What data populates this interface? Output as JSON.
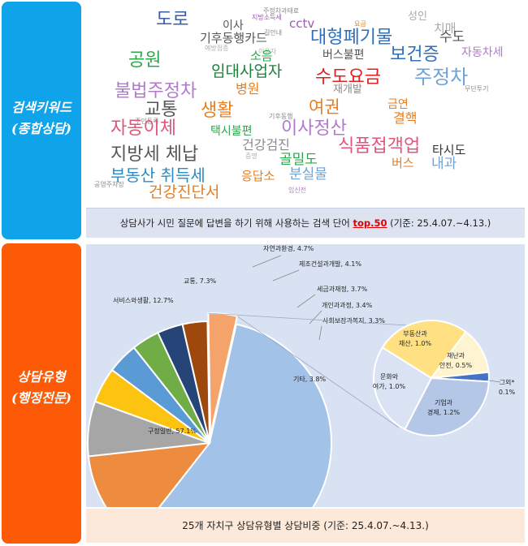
{
  "sections": {
    "keywords": {
      "label_line1": "검색키워드",
      "label_line2": "(종합상담)"
    },
    "types": {
      "label_line1": "상담유형",
      "label_line2": "(행정전문)"
    }
  },
  "colors": {
    "keyword_panel": "#0fa3ea",
    "type_panel": "#fd5a08",
    "caption_top_bg": "#dde3f1",
    "caption_bottom_bg": "#fde9d9",
    "highlight": "#e00000"
  },
  "wordcloud": {
    "caption_pre": "상담사가 시민 질문에 답변을 하기 위해 사용하는 검색 단어 ",
    "caption_highlight": "top.50",
    "caption_post": " (기준: 25.4.07.~4.13.)",
    "words": [
      {
        "text": "도로",
        "color": "#3a5ea8"
      },
      {
        "text": "이사",
        "color": "#555555"
      },
      {
        "text": "주정차과태료",
        "color": "#8a8a8a"
      },
      {
        "text": "지방소득세",
        "color": "#9b59b6"
      },
      {
        "text": "cctv",
        "color": "#9b59b6"
      },
      {
        "text": "요금",
        "color": "#e67e22"
      },
      {
        "text": "성인",
        "color": "#aaaaaa"
      },
      {
        "text": "치매",
        "color": "#aaaaaa"
      },
      {
        "text": "길안내",
        "color": "#8a8a8a"
      },
      {
        "text": "기후동행카드",
        "color": "#555555"
      },
      {
        "text": "대형폐기물",
        "color": "#2e6fc0"
      },
      {
        "text": "수도",
        "color": "#555555"
      },
      {
        "text": "예방접종",
        "color": "#b0b0b0"
      },
      {
        "text": "이용자",
        "color": "#b0b0b0"
      },
      {
        "text": "소음",
        "color": "#2aa84a"
      },
      {
        "text": "버스불편",
        "color": "#555555"
      },
      {
        "text": "보건증",
        "color": "#2e6fc0"
      },
      {
        "text": "자동차세",
        "color": "#b07acc"
      },
      {
        "text": "공원",
        "color": "#2aa84a"
      },
      {
        "text": "임대사업자",
        "color": "#207f3a"
      },
      {
        "text": "수도요금",
        "color": "#e02020"
      },
      {
        "text": "주정차",
        "color": "#6fa3d6"
      },
      {
        "text": "재개발",
        "color": "#8a8a8a"
      },
      {
        "text": "무단투기",
        "color": "#8a8a8a"
      },
      {
        "text": "불법주정차",
        "color": "#b07acc"
      },
      {
        "text": "병원",
        "color": "#e67e22"
      },
      {
        "text": "금연",
        "color": "#e67e22"
      },
      {
        "text": "교통",
        "color": "#555555"
      },
      {
        "text": "생활",
        "color": "#e67e22"
      },
      {
        "text": "기후동행",
        "color": "#8a8a8a"
      },
      {
        "text": "여권",
        "color": "#e67e22"
      },
      {
        "text": "결핵",
        "color": "#e67e22"
      },
      {
        "text": "주민등록",
        "color": "#8a8a8a"
      },
      {
        "text": "자동이체",
        "color": "#e0557a"
      },
      {
        "text": "택시불편",
        "color": "#2aa84a"
      },
      {
        "text": "이사정산",
        "color": "#b07acc"
      },
      {
        "text": "건강검진",
        "color": "#8a8a8a"
      },
      {
        "text": "식품접객업",
        "color": "#e0557a"
      },
      {
        "text": "타시도",
        "color": "#333333"
      },
      {
        "text": "지방세 체납",
        "color": "#555555"
      },
      {
        "text": "골밀도",
        "color": "#2aa84a"
      },
      {
        "text": "증명",
        "color": "#b0b0b0"
      },
      {
        "text": "버스",
        "color": "#e67e22"
      },
      {
        "text": "내과",
        "color": "#6fa3d6"
      },
      {
        "text": "부동산 취득세",
        "color": "#2e8bc0"
      },
      {
        "text": "응답소",
        "color": "#e67e22"
      },
      {
        "text": "분실물",
        "color": "#6fa3d6"
      },
      {
        "text": "공영주차장",
        "color": "#8a8a8a"
      },
      {
        "text": "건강진단서",
        "color": "#e67e22"
      },
      {
        "text": "임신전",
        "color": "#b07acc"
      }
    ]
  },
  "chart_data": [
    {
      "type": "pie",
      "slices": [
        {
          "label": "구정일반",
          "value": 57.1,
          "color": "#a3c2e7"
        },
        {
          "label": "서비스와생활",
          "value": 12.7,
          "color": "#ed8c3e"
        },
        {
          "label": "교통",
          "value": 7.3,
          "color": "#a6a6a6"
        },
        {
          "label": "자연과환경",
          "value": 4.7,
          "color": "#fcc410"
        },
        {
          "label": "제조건설과개발",
          "value": 4.1,
          "color": "#5b9bd5"
        },
        {
          "label": "세금과재정",
          "value": 3.7,
          "color": "#70ad47"
        },
        {
          "label": "개인과과정",
          "value": 3.4,
          "color": "#264478"
        },
        {
          "label": "사회보장과복지",
          "value": 3.3,
          "color": "#9e480e"
        },
        {
          "label": "기타",
          "value": 3.8,
          "color": "#f4a36a"
        }
      ]
    },
    {
      "type": "pie",
      "slices": [
        {
          "label_l1": "부동산과",
          "label_l2": "재산, 1.0%",
          "value": 1.0,
          "color": "#ffe082"
        },
        {
          "label_l1": "재난과",
          "label_l2": "안전, 0.5%",
          "value": 0.5,
          "color": "#fff4d0"
        },
        {
          "label_l1": "그외*",
          "label_l2": "0.1%",
          "value": 0.1,
          "color": "#4472c4"
        },
        {
          "label_l1": "기업과",
          "label_l2": "경제, 1.2%",
          "value": 1.2,
          "color": "#b4c7e7"
        },
        {
          "label_l1": "문화와",
          "label_l2": "여가, 1.0%",
          "value": 1.0,
          "color": "#dae3f3"
        }
      ]
    }
  ],
  "type_caption": "25개 자치구 상담유형별 상담비중 (기준: 25.4.07.~4.13.)"
}
